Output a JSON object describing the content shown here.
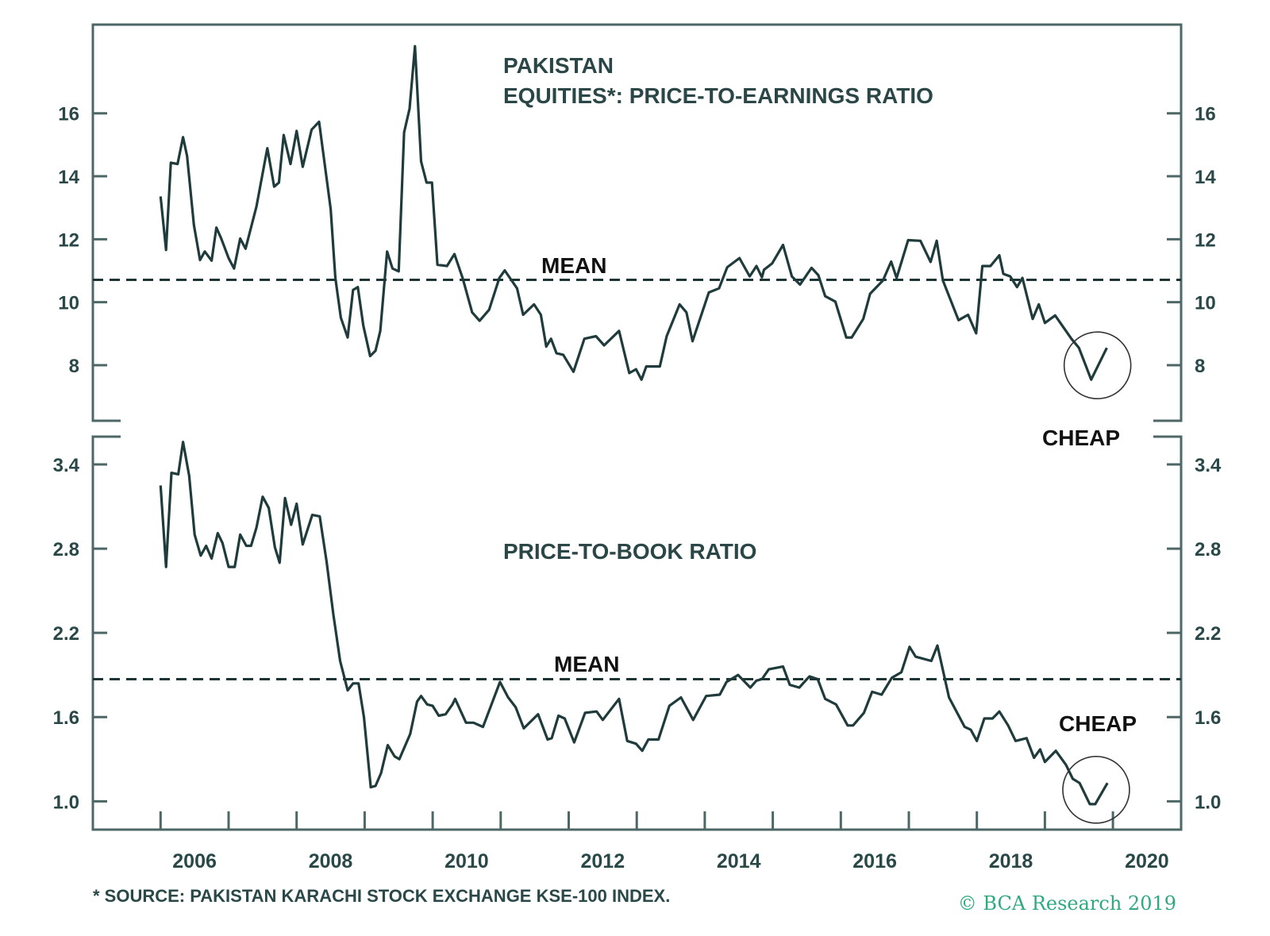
{
  "colors": {
    "series": "#1f3b3b",
    "frame": "#4d6767",
    "mean": "#1e3535",
    "brand": "#2fa97d",
    "circle": "#333333"
  },
  "chart_data": [
    {
      "type": "line",
      "title_line1": "PAKISTAN",
      "title_line2": "EQUITIES*: PRICE-TO-EARNINGS RATIO",
      "xlim": [
        2005,
        2021
      ],
      "ylim": [
        6.2,
        18.8
      ],
      "yticks": [
        8,
        10,
        12,
        14,
        16
      ],
      "ytick_labels": [
        "8",
        "10",
        "12",
        "14",
        "16"
      ],
      "axes": "left-and-right",
      "grid": false,
      "mean": 10.71,
      "mean_label": "MEAN",
      "annotation_label": "CHEAP",
      "series": [
        {
          "points": [
            [
              2006.0,
              13.36
            ],
            [
              2006.08,
              11.66
            ],
            [
              2006.15,
              14.43
            ],
            [
              2006.25,
              14.39
            ],
            [
              2006.33,
              15.24
            ],
            [
              2006.39,
              14.64
            ],
            [
              2006.49,
              12.45
            ],
            [
              2006.58,
              11.34
            ],
            [
              2006.65,
              11.61
            ],
            [
              2006.75,
              11.32
            ],
            [
              2006.82,
              12.37
            ],
            [
              2006.89,
              12.03
            ],
            [
              2007.0,
              11.4
            ],
            [
              2007.08,
              11.07
            ],
            [
              2007.17,
              12.02
            ],
            [
              2007.25,
              11.7
            ],
            [
              2007.41,
              13.04
            ],
            [
              2007.57,
              14.89
            ],
            [
              2007.67,
              13.67
            ],
            [
              2007.74,
              13.8
            ],
            [
              2007.81,
              15.31
            ],
            [
              2007.91,
              14.39
            ],
            [
              2008.0,
              15.44
            ],
            [
              2008.09,
              14.3
            ],
            [
              2008.22,
              15.48
            ],
            [
              2008.33,
              15.73
            ],
            [
              2008.5,
              12.96
            ],
            [
              2008.57,
              10.77
            ],
            [
              2008.65,
              9.51
            ],
            [
              2008.75,
              8.88
            ],
            [
              2008.83,
              10.39
            ],
            [
              2008.9,
              10.48
            ],
            [
              2008.98,
              9.26
            ],
            [
              2009.08,
              8.29
            ],
            [
              2009.16,
              8.46
            ],
            [
              2009.23,
              9.09
            ],
            [
              2009.33,
              11.61
            ],
            [
              2009.41,
              11.07
            ],
            [
              2009.5,
              10.98
            ],
            [
              2009.58,
              15.39
            ],
            [
              2009.66,
              16.15
            ],
            [
              2009.74,
              18.13
            ],
            [
              2009.83,
              14.47
            ],
            [
              2009.91,
              13.8
            ],
            [
              2009.99,
              13.8
            ],
            [
              2010.07,
              11.19
            ],
            [
              2010.21,
              11.15
            ],
            [
              2010.32,
              11.53
            ],
            [
              2010.44,
              10.77
            ],
            [
              2010.58,
              9.68
            ],
            [
              2010.69,
              9.41
            ],
            [
              2010.83,
              9.76
            ],
            [
              2010.98,
              10.77
            ],
            [
              2011.06,
              11.01
            ],
            [
              2011.24,
              10.44
            ],
            [
              2011.33,
              9.6
            ],
            [
              2011.49,
              9.93
            ],
            [
              2011.59,
              9.6
            ],
            [
              2011.67,
              8.59
            ],
            [
              2011.74,
              8.84
            ],
            [
              2011.82,
              8.38
            ],
            [
              2011.92,
              8.33
            ],
            [
              2012.07,
              7.79
            ],
            [
              2012.23,
              8.84
            ],
            [
              2012.4,
              8.92
            ],
            [
              2012.52,
              8.63
            ],
            [
              2012.74,
              9.09
            ],
            [
              2012.89,
              7.75
            ],
            [
              2012.99,
              7.87
            ],
            [
              2013.07,
              7.54
            ],
            [
              2013.14,
              7.96
            ],
            [
              2013.34,
              7.96
            ],
            [
              2013.44,
              8.92
            ],
            [
              2013.63,
              9.93
            ],
            [
              2013.73,
              9.68
            ],
            [
              2013.82,
              8.76
            ],
            [
              2014.06,
              10.31
            ],
            [
              2014.21,
              10.44
            ],
            [
              2014.33,
              11.11
            ],
            [
              2014.51,
              11.4
            ],
            [
              2014.66,
              10.82
            ],
            [
              2014.76,
              11.15
            ],
            [
              2014.84,
              10.79
            ],
            [
              2014.87,
              11.03
            ],
            [
              2014.99,
              11.23
            ],
            [
              2015.15,
              11.82
            ],
            [
              2015.28,
              10.82
            ],
            [
              2015.4,
              10.56
            ],
            [
              2015.57,
              11.09
            ],
            [
              2015.67,
              10.86
            ],
            [
              2015.77,
              10.19
            ],
            [
              2015.92,
              10.02
            ],
            [
              2016.08,
              8.88
            ],
            [
              2016.16,
              8.88
            ],
            [
              2016.33,
              9.47
            ],
            [
              2016.43,
              10.27
            ],
            [
              2016.62,
              10.69
            ],
            [
              2016.74,
              11.29
            ],
            [
              2016.82,
              10.77
            ],
            [
              2016.99,
              11.97
            ],
            [
              2017.17,
              11.95
            ],
            [
              2017.32,
              11.28
            ],
            [
              2017.41,
              11.95
            ],
            [
              2017.5,
              10.69
            ],
            [
              2017.73,
              9.43
            ],
            [
              2017.87,
              9.6
            ],
            [
              2017.99,
              9.01
            ],
            [
              2018.08,
              11.15
            ],
            [
              2018.2,
              11.15
            ],
            [
              2018.33,
              11.49
            ],
            [
              2018.39,
              10.9
            ],
            [
              2018.49,
              10.82
            ],
            [
              2018.59,
              10.48
            ],
            [
              2018.67,
              10.77
            ],
            [
              2018.82,
              9.47
            ],
            [
              2018.91,
              9.93
            ],
            [
              2019.0,
              9.34
            ],
            [
              2019.15,
              9.58
            ],
            [
              2019.39,
              8.84
            ],
            [
              2019.5,
              8.55
            ],
            [
              2019.68,
              7.54
            ],
            [
              2019.91,
              8.55
            ]
          ]
        }
      ]
    },
    {
      "type": "line",
      "title": "PRICE-TO-BOOK RATIO",
      "xlim": [
        2005,
        2021
      ],
      "ylim": [
        0.8,
        3.6
      ],
      "yticks": [
        1.0,
        1.6,
        2.2,
        2.8,
        3.4
      ],
      "ytick_labels": [
        "1.0",
        "1.6",
        "2.2",
        "2.8",
        "3.4"
      ],
      "xticks": [
        2006,
        2007,
        2008,
        2009,
        2010,
        2011,
        2012,
        2013,
        2014,
        2015,
        2016,
        2017,
        2018,
        2019,
        2020
      ],
      "xtick_labels": [
        "2006",
        "2008",
        "2010",
        "2012",
        "2014",
        "2016",
        "2018",
        "2020"
      ],
      "axes": "left-and-right",
      "grid": false,
      "mean": 1.87,
      "mean_label": "MEAN",
      "annotation_label": "CHEAP",
      "series": [
        {
          "points": [
            [
              2006.0,
              3.25
            ],
            [
              2006.08,
              2.67
            ],
            [
              2006.16,
              3.34
            ],
            [
              2006.26,
              3.33
            ],
            [
              2006.33,
              3.56
            ],
            [
              2006.42,
              3.32
            ],
            [
              2006.5,
              2.9
            ],
            [
              2006.59,
              2.75
            ],
            [
              2006.67,
              2.82
            ],
            [
              2006.75,
              2.73
            ],
            [
              2006.84,
              2.91
            ],
            [
              2006.91,
              2.84
            ],
            [
              2007.0,
              2.67
            ],
            [
              2007.09,
              2.67
            ],
            [
              2007.17,
              2.9
            ],
            [
              2007.26,
              2.82
            ],
            [
              2007.33,
              2.82
            ],
            [
              2007.41,
              2.95
            ],
            [
              2007.5,
              3.17
            ],
            [
              2007.59,
              3.09
            ],
            [
              2007.68,
              2.81
            ],
            [
              2007.75,
              2.7
            ],
            [
              2007.83,
              3.16
            ],
            [
              2007.92,
              2.97
            ],
            [
              2008.0,
              3.12
            ],
            [
              2008.09,
              2.83
            ],
            [
              2008.23,
              3.04
            ],
            [
              2008.34,
              3.03
            ],
            [
              2008.44,
              2.71
            ],
            [
              2008.54,
              2.33
            ],
            [
              2008.64,
              2.0
            ],
            [
              2008.75,
              1.79
            ],
            [
              2008.83,
              1.84
            ],
            [
              2008.91,
              1.84
            ],
            [
              2008.99,
              1.6
            ],
            [
              2009.09,
              1.1
            ],
            [
              2009.16,
              1.11
            ],
            [
              2009.24,
              1.2
            ],
            [
              2009.34,
              1.4
            ],
            [
              2009.44,
              1.32
            ],
            [
              2009.51,
              1.3
            ],
            [
              2009.67,
              1.48
            ],
            [
              2009.77,
              1.71
            ],
            [
              2009.83,
              1.75
            ],
            [
              2009.92,
              1.69
            ],
            [
              2010.0,
              1.68
            ],
            [
              2010.09,
              1.61
            ],
            [
              2010.19,
              1.62
            ],
            [
              2010.29,
              1.69
            ],
            [
              2010.33,
              1.73
            ],
            [
              2010.49,
              1.56
            ],
            [
              2010.6,
              1.56
            ],
            [
              2010.74,
              1.53
            ],
            [
              2010.99,
              1.85
            ],
            [
              2011.11,
              1.74
            ],
            [
              2011.22,
              1.67
            ],
            [
              2011.34,
              1.52
            ],
            [
              2011.55,
              1.62
            ],
            [
              2011.69,
              1.44
            ],
            [
              2011.75,
              1.45
            ],
            [
              2011.85,
              1.61
            ],
            [
              2011.94,
              1.59
            ],
            [
              2012.08,
              1.42
            ],
            [
              2012.24,
              1.63
            ],
            [
              2012.41,
              1.64
            ],
            [
              2012.5,
              1.58
            ],
            [
              2012.74,
              1.73
            ],
            [
              2012.86,
              1.43
            ],
            [
              2012.99,
              1.41
            ],
            [
              2013.08,
              1.36
            ],
            [
              2013.17,
              1.44
            ],
            [
              2013.32,
              1.44
            ],
            [
              2013.48,
              1.68
            ],
            [
              2013.65,
              1.74
            ],
            [
              2013.83,
              1.58
            ],
            [
              2014.02,
              1.75
            ],
            [
              2014.22,
              1.76
            ],
            [
              2014.32,
              1.85
            ],
            [
              2014.49,
              1.9
            ],
            [
              2014.67,
              1.81
            ],
            [
              2014.76,
              1.86
            ],
            [
              2014.84,
              1.87
            ],
            [
              2014.94,
              1.94
            ],
            [
              2015.15,
              1.96
            ],
            [
              2015.25,
              1.83
            ],
            [
              2015.39,
              1.81
            ],
            [
              2015.5,
              1.87
            ],
            [
              2015.54,
              1.89
            ],
            [
              2015.66,
              1.87
            ],
            [
              2015.77,
              1.73
            ],
            [
              2015.93,
              1.69
            ],
            [
              2016.1,
              1.54
            ],
            [
              2016.18,
              1.54
            ],
            [
              2016.34,
              1.63
            ],
            [
              2016.46,
              1.78
            ],
            [
              2016.6,
              1.76
            ],
            [
              2016.75,
              1.88
            ],
            [
              2016.89,
              1.92
            ],
            [
              2017.01,
              2.1
            ],
            [
              2017.1,
              2.03
            ],
            [
              2017.33,
              2.0
            ],
            [
              2017.42,
              2.11
            ],
            [
              2017.59,
              1.74
            ],
            [
              2017.82,
              1.53
            ],
            [
              2017.91,
              1.51
            ],
            [
              2018.0,
              1.43
            ],
            [
              2018.11,
              1.59
            ],
            [
              2018.23,
              1.59
            ],
            [
              2018.33,
              1.64
            ],
            [
              2018.46,
              1.54
            ],
            [
              2018.57,
              1.43
            ],
            [
              2018.73,
              1.45
            ],
            [
              2018.84,
              1.31
            ],
            [
              2018.93,
              1.37
            ],
            [
              2019.0,
              1.28
            ],
            [
              2019.16,
              1.36
            ],
            [
              2019.31,
              1.26
            ],
            [
              2019.41,
              1.16
            ],
            [
              2019.51,
              1.13
            ],
            [
              2019.66,
              0.98
            ],
            [
              2019.74,
              0.98
            ],
            [
              2019.92,
              1.13
            ]
          ]
        }
      ]
    }
  ],
  "footnote": "* SOURCE: PAKISTAN KARACHI STOCK EXCHANGE KSE-100 INDEX.",
  "copyright": "© BCA Research 2019"
}
